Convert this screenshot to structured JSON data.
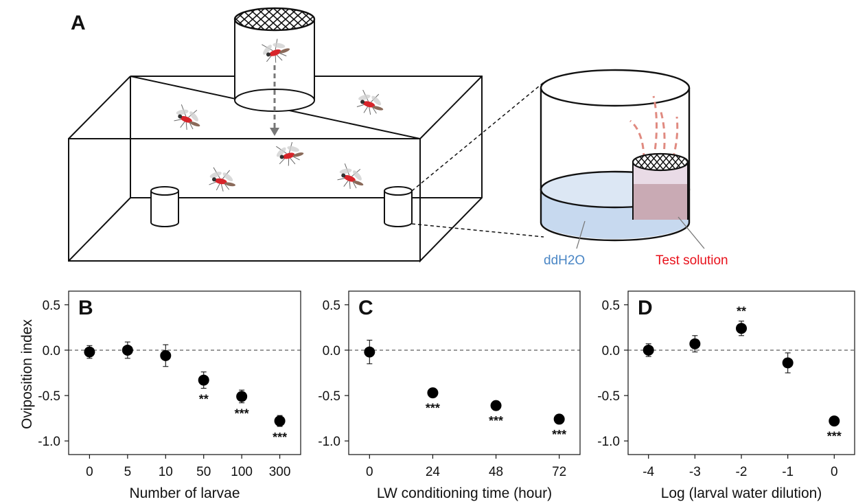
{
  "panel_a": {
    "letter": "A",
    "ddh2o_label": "ddH2O",
    "test_solution_label": "Test solution",
    "colors": {
      "ddh2o": "#4a86c5",
      "test_solution": "#e8101a",
      "water": "#c7d9ef",
      "test_fill": "#c9aab4",
      "plume": "#e08a80"
    }
  },
  "y_axis_title": "Oviposition index",
  "chart_data": [
    {
      "type": "scatter",
      "panel": "B",
      "xlabel": "Number of larvae",
      "categories": [
        "0",
        "5",
        "10",
        "50",
        "100",
        "300"
      ],
      "values": [
        -0.02,
        0.0,
        -0.06,
        -0.33,
        -0.51,
        -0.78
      ],
      "errors": [
        0.07,
        0.09,
        0.12,
        0.09,
        0.07,
        0.06
      ],
      "significance": [
        "",
        "",
        "",
        "**",
        "***",
        "***"
      ],
      "ylim": [
        -1.15,
        0.65
      ],
      "yticks": [
        "0.5",
        "0.0",
        "-0.5",
        "-1.0"
      ],
      "ytick_values": [
        0.5,
        0.0,
        -0.5,
        -1.0
      ],
      "reference_line": 0
    },
    {
      "type": "scatter",
      "panel": "C",
      "xlabel": "LW conditioning time (hour)",
      "categories": [
        "0",
        "24",
        "48",
        "72"
      ],
      "values": [
        -0.02,
        -0.47,
        -0.61,
        -0.76
      ],
      "errors": [
        0.13,
        0.05,
        0.05,
        0.05
      ],
      "significance": [
        "",
        "***",
        "***",
        "***"
      ],
      "ylim": [
        -1.15,
        0.65
      ],
      "yticks": [
        "0.5",
        "0.0",
        "-0.5",
        "-1.0"
      ],
      "ytick_values": [
        0.5,
        0.0,
        -0.5,
        -1.0
      ],
      "reference_line": 0
    },
    {
      "type": "scatter",
      "panel": "D",
      "xlabel": "Log (larval water dilution)",
      "categories": [
        "-4",
        "-3",
        "-2",
        "-1",
        "0"
      ],
      "values": [
        0.0,
        0.07,
        0.24,
        -0.14,
        -0.78
      ],
      "errors": [
        0.07,
        0.09,
        0.08,
        0.11,
        0.05
      ],
      "significance": [
        "",
        "",
        "**",
        "",
        "***"
      ],
      "ylim": [
        -1.15,
        0.65
      ],
      "yticks": [
        "0.5",
        "0.0",
        "-0.5",
        "-1.0"
      ],
      "ytick_values": [
        0.5,
        0.0,
        -0.5,
        -1.0
      ],
      "reference_line": 0
    }
  ]
}
